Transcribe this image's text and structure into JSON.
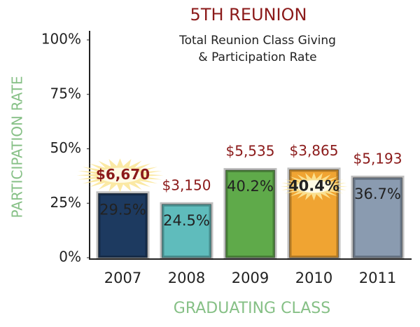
{
  "chart_data": {
    "type": "bar",
    "title": "5TH REUNION",
    "subtitle": [
      "Total Reunion Class Giving",
      "& Participation Rate"
    ],
    "y_label": "PARTICIPATION RATE",
    "x_label": "GRADUATING CLASS",
    "categories": [
      "2007",
      "2008",
      "2009",
      "2010",
      "2011"
    ],
    "values": [
      29.5,
      24.5,
      40.2,
      40.4,
      36.7
    ],
    "value_labels": [
      "29.5%",
      "24.5%",
      "40.2%",
      "40.4%",
      "36.7%"
    ],
    "colors": [
      "#1d3a60",
      "#5fbcbc",
      "#5faa4a",
      "#f0a432",
      "#8a9bb0"
    ],
    "giving": {
      "values": [
        6670,
        3150,
        5535,
        3865,
        5193
      ],
      "value_labels": [
        "$6,670",
        "$3,150",
        "$5,535",
        "$3,865",
        "$5,193"
      ]
    },
    "ylim": [
      0,
      100
    ],
    "yticks": [
      {
        "value": 0,
        "label": "0%"
      },
      {
        "value": 25,
        "label": "25%"
      },
      {
        "value": 50,
        "label": "50%"
      },
      {
        "value": 75,
        "label": "75%"
      },
      {
        "value": 100,
        "label": "100%"
      }
    ]
  }
}
